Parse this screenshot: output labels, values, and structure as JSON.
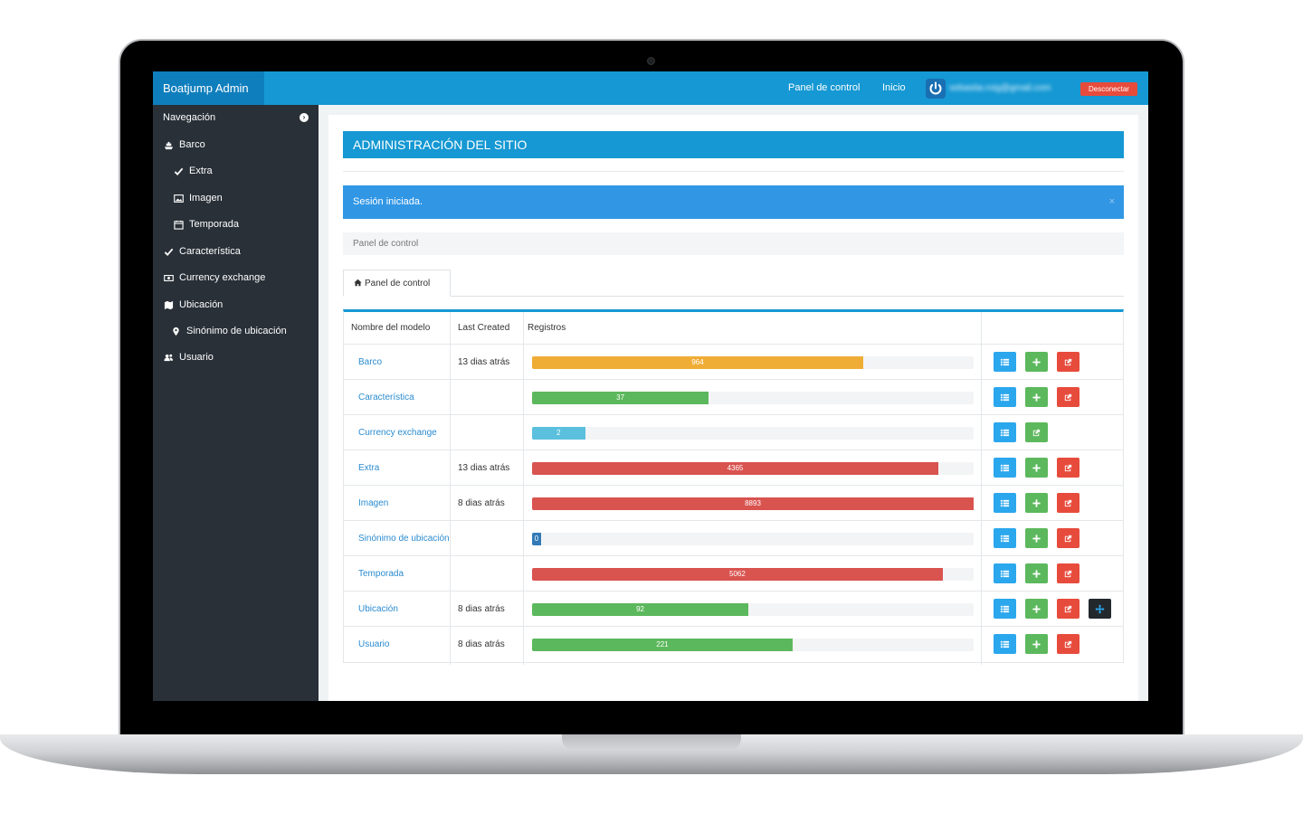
{
  "header": {
    "brand": "Boatjump Admin",
    "nav": [
      "Panel de control",
      "Inicio"
    ],
    "user_email": "sebastia.roig@gmail.com",
    "logout_label": "Desconectar"
  },
  "sidebar": {
    "heading": "Navegación",
    "items": [
      {
        "label": "Barco",
        "icon": "ship-icon"
      },
      {
        "label": "Extra",
        "icon": "check-icon"
      },
      {
        "label": "Imagen",
        "icon": "image-icon"
      },
      {
        "label": "Temporada",
        "icon": "calendar-icon"
      },
      {
        "label": "Característica",
        "icon": "check-icon"
      },
      {
        "label": "Currency exchange",
        "icon": "money-icon"
      },
      {
        "label": "Ubicación",
        "icon": "map-icon"
      },
      {
        "label": "Sinónimo de ubicación",
        "icon": "map-marker-icon"
      },
      {
        "label": "Usuario",
        "icon": "users-icon"
      }
    ]
  },
  "main": {
    "title": "ADMINISTRACIÓN DEL SITIO",
    "alert": "Sesión iniciada.",
    "alert_close": "×",
    "breadcrumb": "Panel de control",
    "tab_label": "Panel de control",
    "table": {
      "headers": [
        "Nombre del modelo",
        "Last Created",
        "Registros"
      ],
      "max_records": 8893,
      "rows": [
        {
          "name": "Barco",
          "last_created": "13 dias atrás",
          "records": 964,
          "color": "#f0ad36",
          "fraction": 0.75,
          "buttons": [
            "list",
            "add",
            "edit"
          ]
        },
        {
          "name": "Característica",
          "last_created": "",
          "records": 37,
          "color": "#5cb85c",
          "fraction": 0.4,
          "buttons": [
            "list",
            "add",
            "edit"
          ]
        },
        {
          "name": "Currency exchange",
          "last_created": "",
          "records": 2,
          "color": "#5bc0de",
          "fraction": 0.12,
          "buttons": [
            "list",
            "edit-green"
          ]
        },
        {
          "name": "Extra",
          "last_created": "13 dias atrás",
          "records": 4365,
          "color": "#d9534f",
          "fraction": 0.92,
          "buttons": [
            "list",
            "add",
            "edit"
          ]
        },
        {
          "name": "Imagen",
          "last_created": "8 dias atrás",
          "records": 8893,
          "color": "#d9534f",
          "fraction": 1.0,
          "buttons": [
            "list",
            "add",
            "edit"
          ]
        },
        {
          "name": "Sinónimo de ubicación",
          "last_created": "",
          "records": 0,
          "color": "#337ab7",
          "fraction": 0.02,
          "buttons": [
            "list",
            "add",
            "edit"
          ]
        },
        {
          "name": "Temporada",
          "last_created": "",
          "records": 5062,
          "color": "#d9534f",
          "fraction": 0.93,
          "buttons": [
            "list",
            "add",
            "edit"
          ]
        },
        {
          "name": "Ubicación",
          "last_created": "8 dias atrás",
          "records": 92,
          "color": "#5cb85c",
          "fraction": 0.49,
          "buttons": [
            "list",
            "add",
            "edit",
            "move"
          ]
        },
        {
          "name": "Usuario",
          "last_created": "8 dias atrás",
          "records": 221,
          "color": "#5cb85c",
          "fraction": 0.59,
          "buttons": [
            "list",
            "add",
            "edit"
          ]
        }
      ]
    }
  }
}
